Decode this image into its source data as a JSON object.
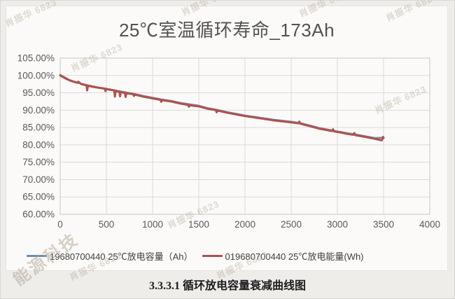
{
  "page": {
    "caption": "3.3.3.1 循环放电容量衰减曲线图"
  },
  "watermark": {
    "text": "肖振华 6823",
    "corner_text": "能源科技"
  },
  "legend": [
    {
      "label": "19680700440 25℃放电容量（Ah）",
      "color": "#6d8eae"
    },
    {
      "label": "019680700440 25℃放电能量(Wh)",
      "color": "#b0514d"
    }
  ],
  "chart_data": {
    "type": "line",
    "title": "25℃室温循环寿命_173Ah",
    "xlabel": "",
    "ylabel": "",
    "xlim": [
      0,
      4000
    ],
    "ylim": [
      60,
      105
    ],
    "grid": true,
    "grid_color": "#dadada",
    "border_color": "#c7c7c7",
    "legend_position": "bottom",
    "x_ticks": [
      {
        "value": 0,
        "label": "0"
      },
      {
        "value": 500,
        "label": "500"
      },
      {
        "value": 1000,
        "label": "1000"
      },
      {
        "value": 1500,
        "label": "1500"
      },
      {
        "value": 2000,
        "label": "2000"
      },
      {
        "value": 2500,
        "label": "2500"
      },
      {
        "value": 3000,
        "label": "3000"
      },
      {
        "value": 3500,
        "label": "3500"
      },
      {
        "value": 4000,
        "label": "4000"
      }
    ],
    "y_ticks": [
      {
        "value": 105,
        "label": "105.00%"
      },
      {
        "value": 100,
        "label": "100.00%"
      },
      {
        "value": 95,
        "label": "95.00%"
      },
      {
        "value": 90,
        "label": "90.00%"
      },
      {
        "value": 85,
        "label": "85.00%"
      },
      {
        "value": 80,
        "label": "80.00%"
      },
      {
        "value": 75,
        "label": "75.00%"
      },
      {
        "value": 70,
        "label": "70.00%"
      },
      {
        "value": 65,
        "label": "65.00%"
      }
    ],
    "y_tick_bottom": {
      "value": 60,
      "label": "60.00%"
    },
    "series": [
      {
        "name": "19680700440 25℃放电容量（Ah）",
        "color": "#6d8eae",
        "width": 2.5,
        "points": [
          [
            0,
            100.2
          ],
          [
            100,
            98.7
          ],
          [
            200,
            97.8
          ],
          [
            300,
            97.2
          ],
          [
            400,
            96.6
          ],
          [
            500,
            96.2
          ],
          [
            600,
            95.7
          ],
          [
            700,
            95.2
          ],
          [
            800,
            94.7
          ],
          [
            900,
            94.1
          ],
          [
            1000,
            93.6
          ],
          [
            1100,
            93.1
          ],
          [
            1200,
            92.7
          ],
          [
            1300,
            92.1
          ],
          [
            1400,
            91.7
          ],
          [
            1500,
            91.3
          ],
          [
            1600,
            90.6
          ],
          [
            1700,
            90.1
          ],
          [
            1800,
            89.5
          ],
          [
            1900,
            89.0
          ],
          [
            2000,
            88.5
          ],
          [
            2100,
            88.1
          ],
          [
            2200,
            87.7
          ],
          [
            2300,
            87.3
          ],
          [
            2400,
            87.0
          ],
          [
            2500,
            86.7
          ],
          [
            2600,
            86.3
          ],
          [
            2700,
            85.6
          ],
          [
            2800,
            84.9
          ],
          [
            2900,
            84.4
          ],
          [
            3000,
            83.9
          ],
          [
            3100,
            83.4
          ],
          [
            3200,
            83.0
          ],
          [
            3300,
            82.5
          ],
          [
            3400,
            82.0
          ],
          [
            3500,
            82.1
          ]
        ]
      },
      {
        "name": "019680700440 25℃放电能量(Wh)",
        "color": "#b0514d",
        "width": 3,
        "points": [
          [
            0,
            100.0
          ],
          [
            60,
            99.1
          ],
          [
            120,
            98.4
          ],
          [
            185,
            97.9
          ],
          [
            195,
            98.2
          ],
          [
            230,
            97.5
          ],
          [
            285,
            97.1
          ],
          [
            292,
            95.7
          ],
          [
            300,
            97.0
          ],
          [
            360,
            96.7
          ],
          [
            430,
            96.4
          ],
          [
            483,
            96.2
          ],
          [
            490,
            95.5
          ],
          [
            498,
            96.1
          ],
          [
            560,
            95.8
          ],
          [
            585,
            95.7
          ],
          [
            592,
            93.9
          ],
          [
            600,
            95.5
          ],
          [
            640,
            95.3
          ],
          [
            648,
            94.0
          ],
          [
            656,
            95.2
          ],
          [
            700,
            95.0
          ],
          [
            708,
            93.8
          ],
          [
            716,
            94.9
          ],
          [
            790,
            94.6
          ],
          [
            798,
            94.1
          ],
          [
            806,
            94.5
          ],
          [
            900,
            93.9
          ],
          [
            1000,
            93.4
          ],
          [
            1085,
            93.0
          ],
          [
            1093,
            92.4
          ],
          [
            1101,
            92.9
          ],
          [
            1200,
            92.5
          ],
          [
            1300,
            91.9
          ],
          [
            1385,
            91.5
          ],
          [
            1393,
            91.0
          ],
          [
            1401,
            91.4
          ],
          [
            1500,
            91.1
          ],
          [
            1600,
            90.4
          ],
          [
            1685,
            90.0
          ],
          [
            1693,
            89.4
          ],
          [
            1701,
            89.9
          ],
          [
            1800,
            89.3
          ],
          [
            1900,
            88.8
          ],
          [
            2000,
            88.3
          ],
          [
            2100,
            87.9
          ],
          [
            2200,
            87.5
          ],
          [
            2300,
            87.1
          ],
          [
            2400,
            86.8
          ],
          [
            2500,
            86.5
          ],
          [
            2578,
            86.2
          ],
          [
            2588,
            86.7
          ],
          [
            2598,
            86.1
          ],
          [
            2700,
            85.4
          ],
          [
            2800,
            84.7
          ],
          [
            2900,
            84.2
          ],
          [
            2943,
            84.0
          ],
          [
            2953,
            84.5
          ],
          [
            2963,
            83.9
          ],
          [
            3050,
            83.5
          ],
          [
            3100,
            83.2
          ],
          [
            3173,
            82.9
          ],
          [
            3183,
            83.4
          ],
          [
            3193,
            82.8
          ],
          [
            3300,
            82.3
          ],
          [
            3400,
            81.8
          ],
          [
            3465,
            81.4
          ],
          [
            3480,
            81.3
          ],
          [
            3495,
            82.3
          ],
          [
            3500,
            82.0
          ]
        ]
      }
    ]
  }
}
